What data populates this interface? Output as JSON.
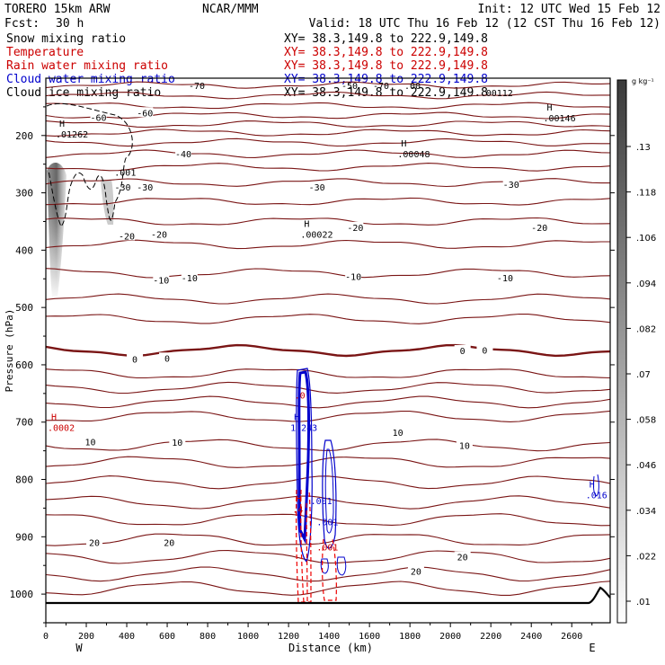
{
  "header": {
    "model_line": "TORERO  15km ARW",
    "center": "NCAR/MMM",
    "init": "Init: 12 UTC Wed 15 Feb 12",
    "fcst_label": "Fcst:",
    "fcst_value": "30 h",
    "valid": "Valid: 18 UTC Thu 16 Feb 12 (12 CST Thu 16 Feb 12)"
  },
  "legend": [
    {
      "name": "Snow mixing ratio",
      "xy": "XY=  38.3,149.8 to 222.9,149.8",
      "color": "#000000",
      "xy_color": "#000000"
    },
    {
      "name": "Temperature",
      "xy": "XY=  38.3,149.8 to 222.9,149.8",
      "color": "#cc0000",
      "xy_color": "#cc0000"
    },
    {
      "name": "Rain water mixing ratio",
      "xy": "XY=  38.3,149.8 to 222.9,149.8",
      "color": "#cc0000",
      "xy_color": "#cc0000"
    },
    {
      "name": "Cloud water mixing ratio",
      "xy": "XY=  38.3,149.8 to 222.9,149.8",
      "color": "#0000cc",
      "xy_color": "#0000cc"
    },
    {
      "name": "Cloud ice mixing ratio",
      "xy": "XY=  38.3,149.8 to 222.9,149.8",
      "color": "#000000",
      "xy_color": "#000000"
    }
  ],
  "colors": {
    "temperature": "#7a1515",
    "rain": "#ee0000",
    "cloud_water": "#0000cc",
    "ice": "#000000",
    "terrain": "#000000"
  },
  "chart_data": {
    "type": "cross-section",
    "xlabel": "Distance (km)",
    "ylabel": "Pressure (hPa)",
    "xlim": [
      0,
      2790
    ],
    "ylim": [
      1050,
      100
    ],
    "x_ticks": [
      0,
      200,
      400,
      600,
      800,
      1000,
      1200,
      1400,
      1600,
      1800,
      2000,
      2200,
      2400,
      2600
    ],
    "y_ticks": [
      200,
      300,
      400,
      500,
      600,
      700,
      800,
      900,
      1000
    ],
    "endpoint_left": "W",
    "endpoint_right": "E",
    "colorbar": {
      "unit": "g kg⁻¹",
      "ticks": [
        ".01",
        ".022",
        ".034",
        ".046",
        ".058",
        ".07",
        ".082",
        ".094",
        ".106",
        ".118",
        ".13"
      ]
    },
    "isotherms": [
      {
        "label": "-60",
        "p": 165
      },
      {
        "label": "-50",
        "p": 195
      },
      {
        "label": "-40",
        "p": 232
      },
      {
        "label": "-30",
        "p": 282
      },
      {
        "label": "-20",
        "p": 350
      },
      {
        "label": "-10",
        "p": 440
      },
      {
        "label": "0",
        "p": 575
      },
      {
        "label": "10",
        "p": 740
      },
      {
        "label": "20",
        "p": 905
      }
    ],
    "extra_isotherm_pressures": [
      112,
      130,
      148,
      180,
      212,
      255,
      315,
      390,
      485,
      520,
      615,
      640,
      665,
      690,
      770,
      805,
      840,
      870,
      935,
      965,
      990
    ],
    "isotherm_label_positions": [
      {
        "label": "-60",
        "x": 260,
        "p": 168
      },
      {
        "label": "-60",
        "x": 490,
        "p": 160
      },
      {
        "label": "-40",
        "x": 680,
        "p": 232
      },
      {
        "label": "-30",
        "x": 380,
        "p": 290
      },
      {
        "label": "-30",
        "x": 490,
        "p": 290
      },
      {
        "label": "-30",
        "x": 1340,
        "p": 290
      },
      {
        "label": "-30",
        "x": 2300,
        "p": 285
      },
      {
        "label": "-20",
        "x": 400,
        "p": 375
      },
      {
        "label": "-20",
        "x": 560,
        "p": 372
      },
      {
        "label": "-20",
        "x": 1530,
        "p": 360
      },
      {
        "label": "-20",
        "x": 2440,
        "p": 360
      },
      {
        "label": "-10",
        "x": 570,
        "p": 452
      },
      {
        "label": "-10",
        "x": 710,
        "p": 448
      },
      {
        "label": "-10",
        "x": 1520,
        "p": 446
      },
      {
        "label": "-10",
        "x": 2270,
        "p": 448
      },
      {
        "label": "0",
        "x": 440,
        "p": 590
      },
      {
        "label": "0",
        "x": 600,
        "p": 588
      },
      {
        "label": "0",
        "x": 2060,
        "p": 575
      },
      {
        "label": "0",
        "x": 2170,
        "p": 574
      },
      {
        "label": "10",
        "x": 220,
        "p": 734
      },
      {
        "label": "10",
        "x": 650,
        "p": 735
      },
      {
        "label": "10",
        "x": 1740,
        "p": 718
      },
      {
        "label": "10",
        "x": 2070,
        "p": 740
      },
      {
        "label": "20",
        "x": 240,
        "p": 910
      },
      {
        "label": "20",
        "x": 610,
        "p": 910
      },
      {
        "label": "20",
        "x": 2060,
        "p": 935
      },
      {
        "label": "20",
        "x": 1830,
        "p": 960
      }
    ],
    "top_partial_labels": [
      "-70",
      "-50",
      "-70",
      ".00"
    ],
    "annotations": [
      {
        "mark": "H",
        "value": ".01262",
        "x": 40,
        "p": 200,
        "color": "#000000"
      },
      {
        "mark": "",
        "value": ".001",
        "x": 330,
        "p": 267,
        "color": "#000000"
      },
      {
        "mark": "H",
        "value": ".00048",
        "x": 1730,
        "p": 235,
        "color": "#000000"
      },
      {
        "mark": "H",
        "value": ".00022",
        "x": 1250,
        "p": 375,
        "color": "#000000"
      },
      {
        "mark": "",
        "value": ".00112",
        "x": 2140,
        "p": 128,
        "color": "#000000"
      },
      {
        "mark": "H",
        "value": ".00146",
        "x": 2450,
        "p": 172,
        "color": "#000000"
      },
      {
        "mark": "H",
        "value": ".0002",
        "x": 0,
        "p": 712,
        "color": "#cc0000"
      },
      {
        "mark": "H",
        "value": "1.243",
        "x": 1200,
        "p": 712,
        "color": "#0000cc"
      },
      {
        "mark": "",
        "value": ".0",
        "x": 1220,
        "p": 656,
        "color": "#cc0000"
      },
      {
        "mark": "H",
        "value": ".4",
        "x": 1210,
        "p": 855,
        "color": "#cc0000"
      },
      {
        "mark": "",
        "value": ".001",
        "x": 1300,
        "p": 840,
        "color": "#0000cc"
      },
      {
        "mark": "",
        "value": ".001",
        "x": 1330,
        "p": 877,
        "color": "#0000cc"
      },
      {
        "mark": "",
        "value": ".001",
        "x": 1330,
        "p": 921,
        "color": "#cc0000"
      },
      {
        "mark": "H",
        "value": ".016",
        "x": 2660,
        "p": 830,
        "color": "#0000cc"
      }
    ]
  }
}
